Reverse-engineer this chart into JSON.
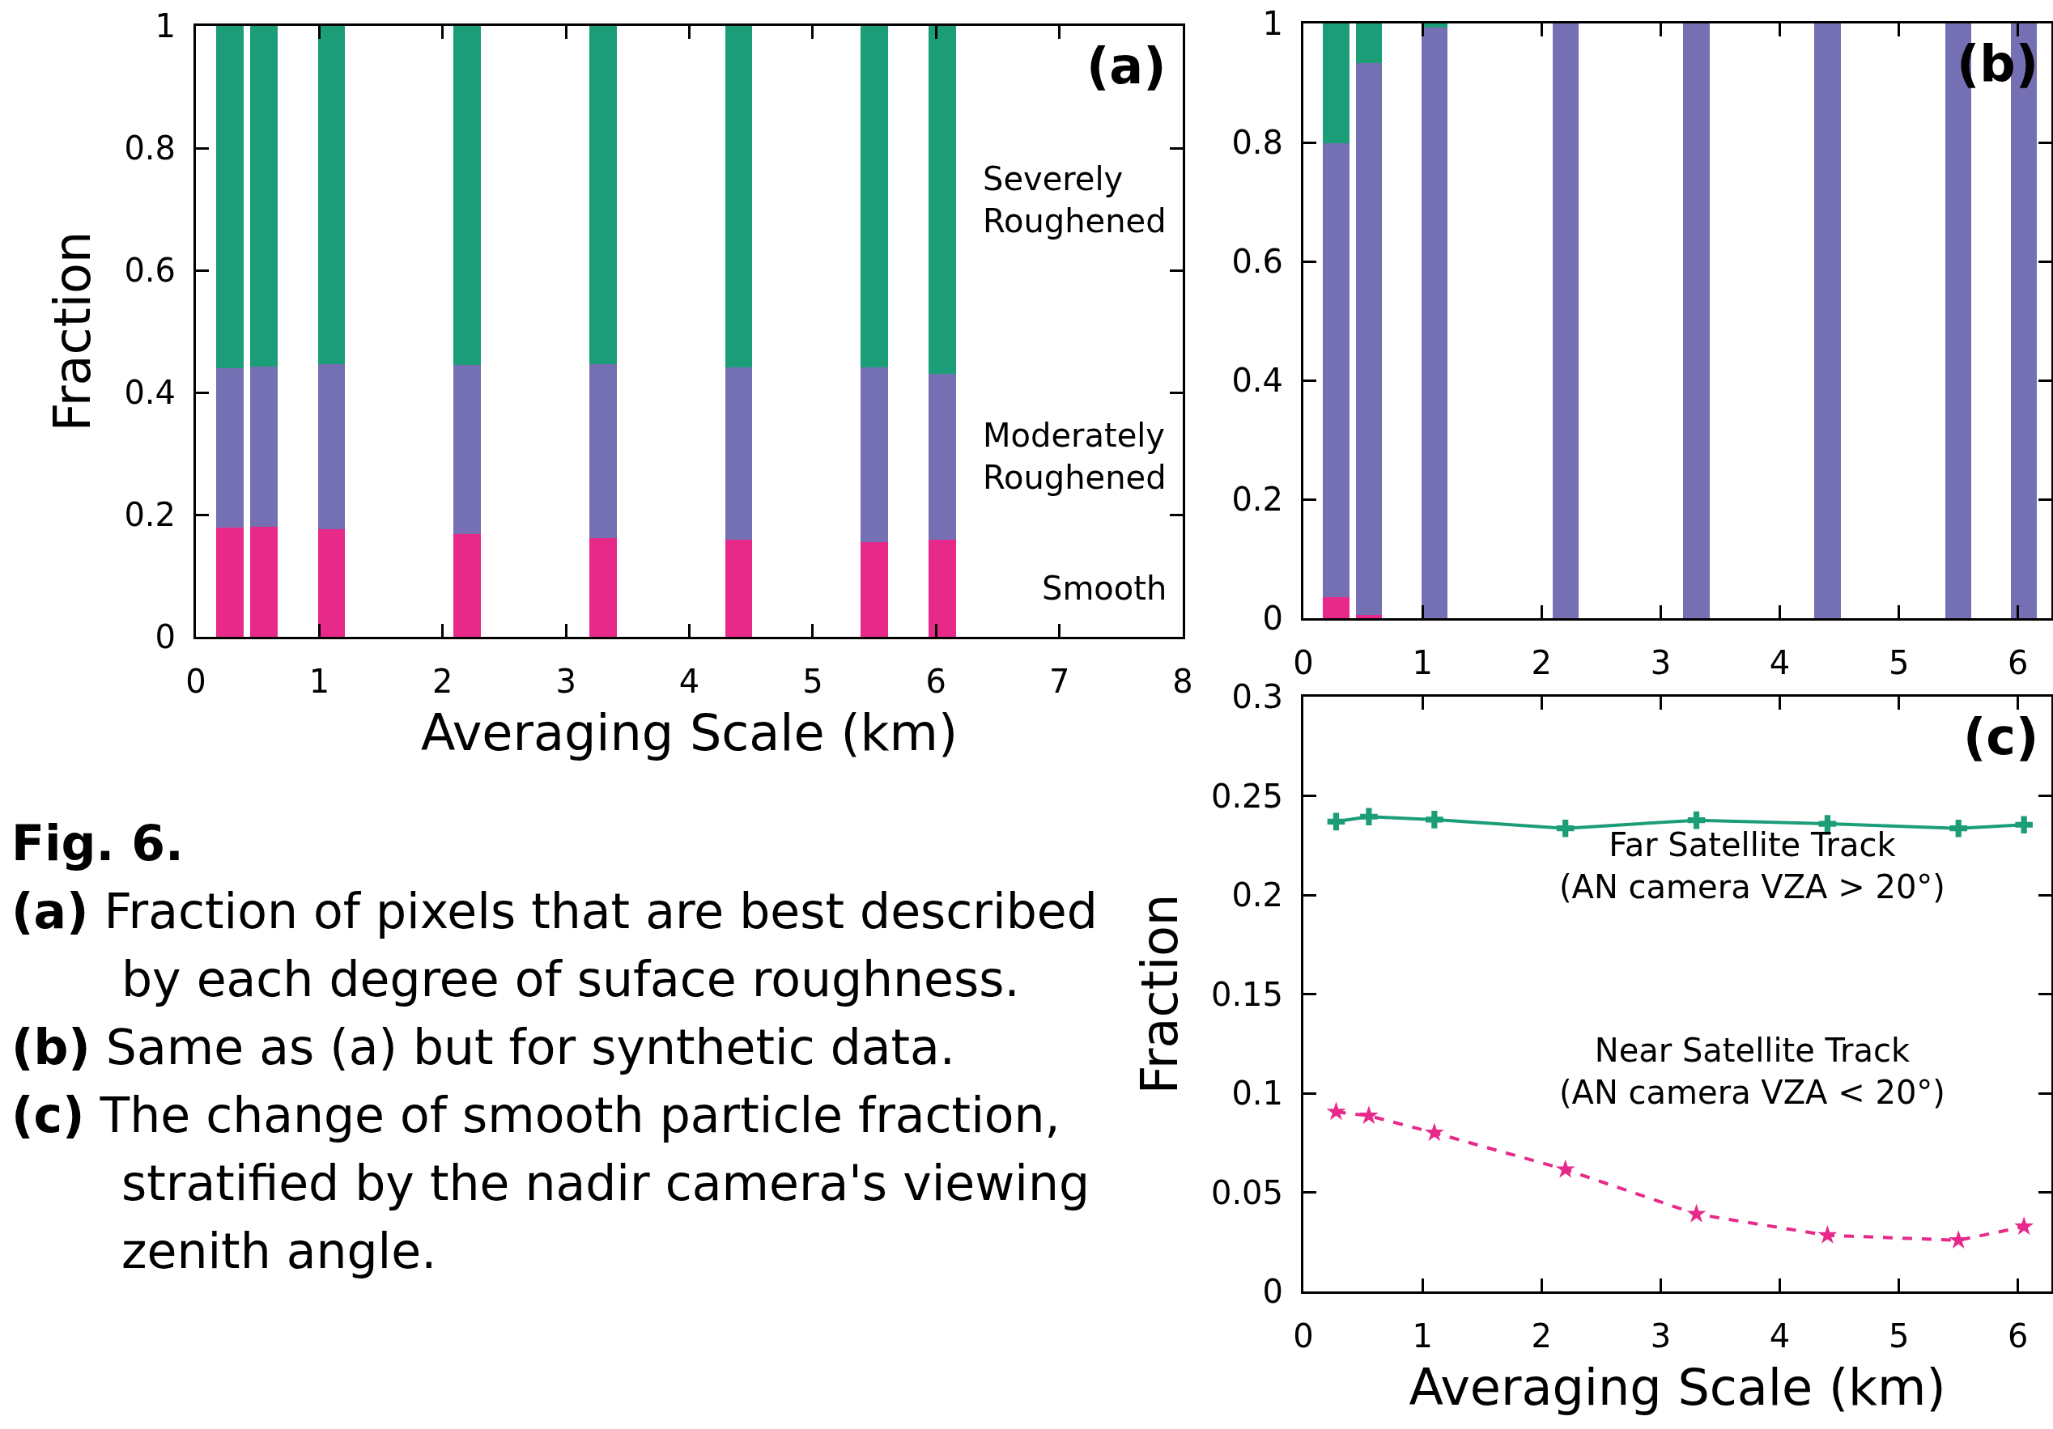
{
  "chart_data": [
    {
      "type": "bar",
      "title": "(a)",
      "xlabel": "Averaging Scale (km)",
      "ylabel": "Fraction",
      "stacked": true,
      "x": [
        0.275,
        0.55,
        1.1,
        2.2,
        3.3,
        4.4,
        5.5,
        6.05
      ],
      "series": [
        {
          "name": "Smooth",
          "color": "#e7298a",
          "values": [
            0.179,
            0.18,
            0.176,
            0.168,
            0.162,
            0.159,
            0.155,
            0.159
          ]
        },
        {
          "name": "Moderately\nRoughened",
          "color": "#7570b3",
          "values": [
            0.261,
            0.263,
            0.271,
            0.277,
            0.285,
            0.282,
            0.286,
            0.272
          ]
        },
        {
          "name": "Severely\nRoughened",
          "color": "#1b9e77",
          "values": [
            0.56,
            0.557,
            0.553,
            0.555,
            0.553,
            0.559,
            0.559,
            0.569
          ]
        }
      ],
      "xlim": [
        0,
        8
      ],
      "xticks": [
        0,
        1,
        2,
        3,
        4,
        5,
        6,
        7,
        8
      ],
      "ylim": [
        0,
        1
      ],
      "yticks": [
        0,
        0.2,
        0.4,
        0.6,
        0.8,
        1
      ],
      "annotations": [
        "Fig. 6.",
        "(a) Fraction of pixels that are best described by each degree of suface roughness.",
        "(b) Same as (a) but for synthetic data.",
        "(c) The change of smooth particle fraction, stratified by the nadir camera's viewing zenith angle."
      ]
    },
    {
      "type": "bar",
      "title": "(b)",
      "stacked": true,
      "x": [
        0.275,
        0.55,
        1.1,
        2.2,
        3.3,
        4.4,
        5.5,
        6.05
      ],
      "series": [
        {
          "color": "#e7298a",
          "values": [
            0.035,
            0.006,
            0,
            0,
            0,
            0,
            0,
            0
          ]
        },
        {
          "color": "#7570b3",
          "values": [
            0.764,
            0.927,
            0.993,
            1,
            1,
            1,
            1,
            1
          ]
        },
        {
          "color": "#1b9e77",
          "values": [
            0.201,
            0.067,
            0.007,
            0,
            0,
            0,
            0,
            0
          ]
        }
      ],
      "xlim": [
        0,
        6.28
      ],
      "xticks": [
        0,
        1,
        2,
        3,
        4,
        5,
        6
      ],
      "ylim": [
        0,
        1
      ],
      "yticks": [
        0,
        0.2,
        0.4,
        0.6,
        0.8,
        1
      ]
    },
    {
      "type": "line",
      "title": "(c)",
      "xlabel": "Averaging Scale (km)",
      "ylabel": "Fraction",
      "x": [
        0.275,
        0.55,
        1.1,
        2.2,
        3.3,
        4.4,
        5.5,
        6.05
      ],
      "series": [
        {
          "name": "Far Satellite Track\n(AN camera VZA > 20°)",
          "color": "#1b9e77",
          "marker": "cross",
          "line_style": "solid",
          "values": [
            0.237,
            0.2395,
            0.238,
            0.2336,
            0.2377,
            0.2359,
            0.2336,
            0.2354
          ]
        },
        {
          "name": "Near Satellite Track\n(AN camera VZA < 20°)",
          "color": "#e7298a",
          "marker": "star",
          "line_style": "dashed",
          "values": [
            0.0906,
            0.0886,
            0.08,
            0.0615,
            0.039,
            0.0283,
            0.0258,
            0.0327
          ]
        }
      ],
      "xlim": [
        0,
        6.28
      ],
      "xticks": [
        0,
        1,
        2,
        3,
        4,
        5,
        6
      ],
      "ylim": [
        0,
        0.3
      ],
      "yticks": [
        0,
        0.05,
        0.1,
        0.15,
        0.2,
        0.25,
        0.3
      ]
    }
  ]
}
